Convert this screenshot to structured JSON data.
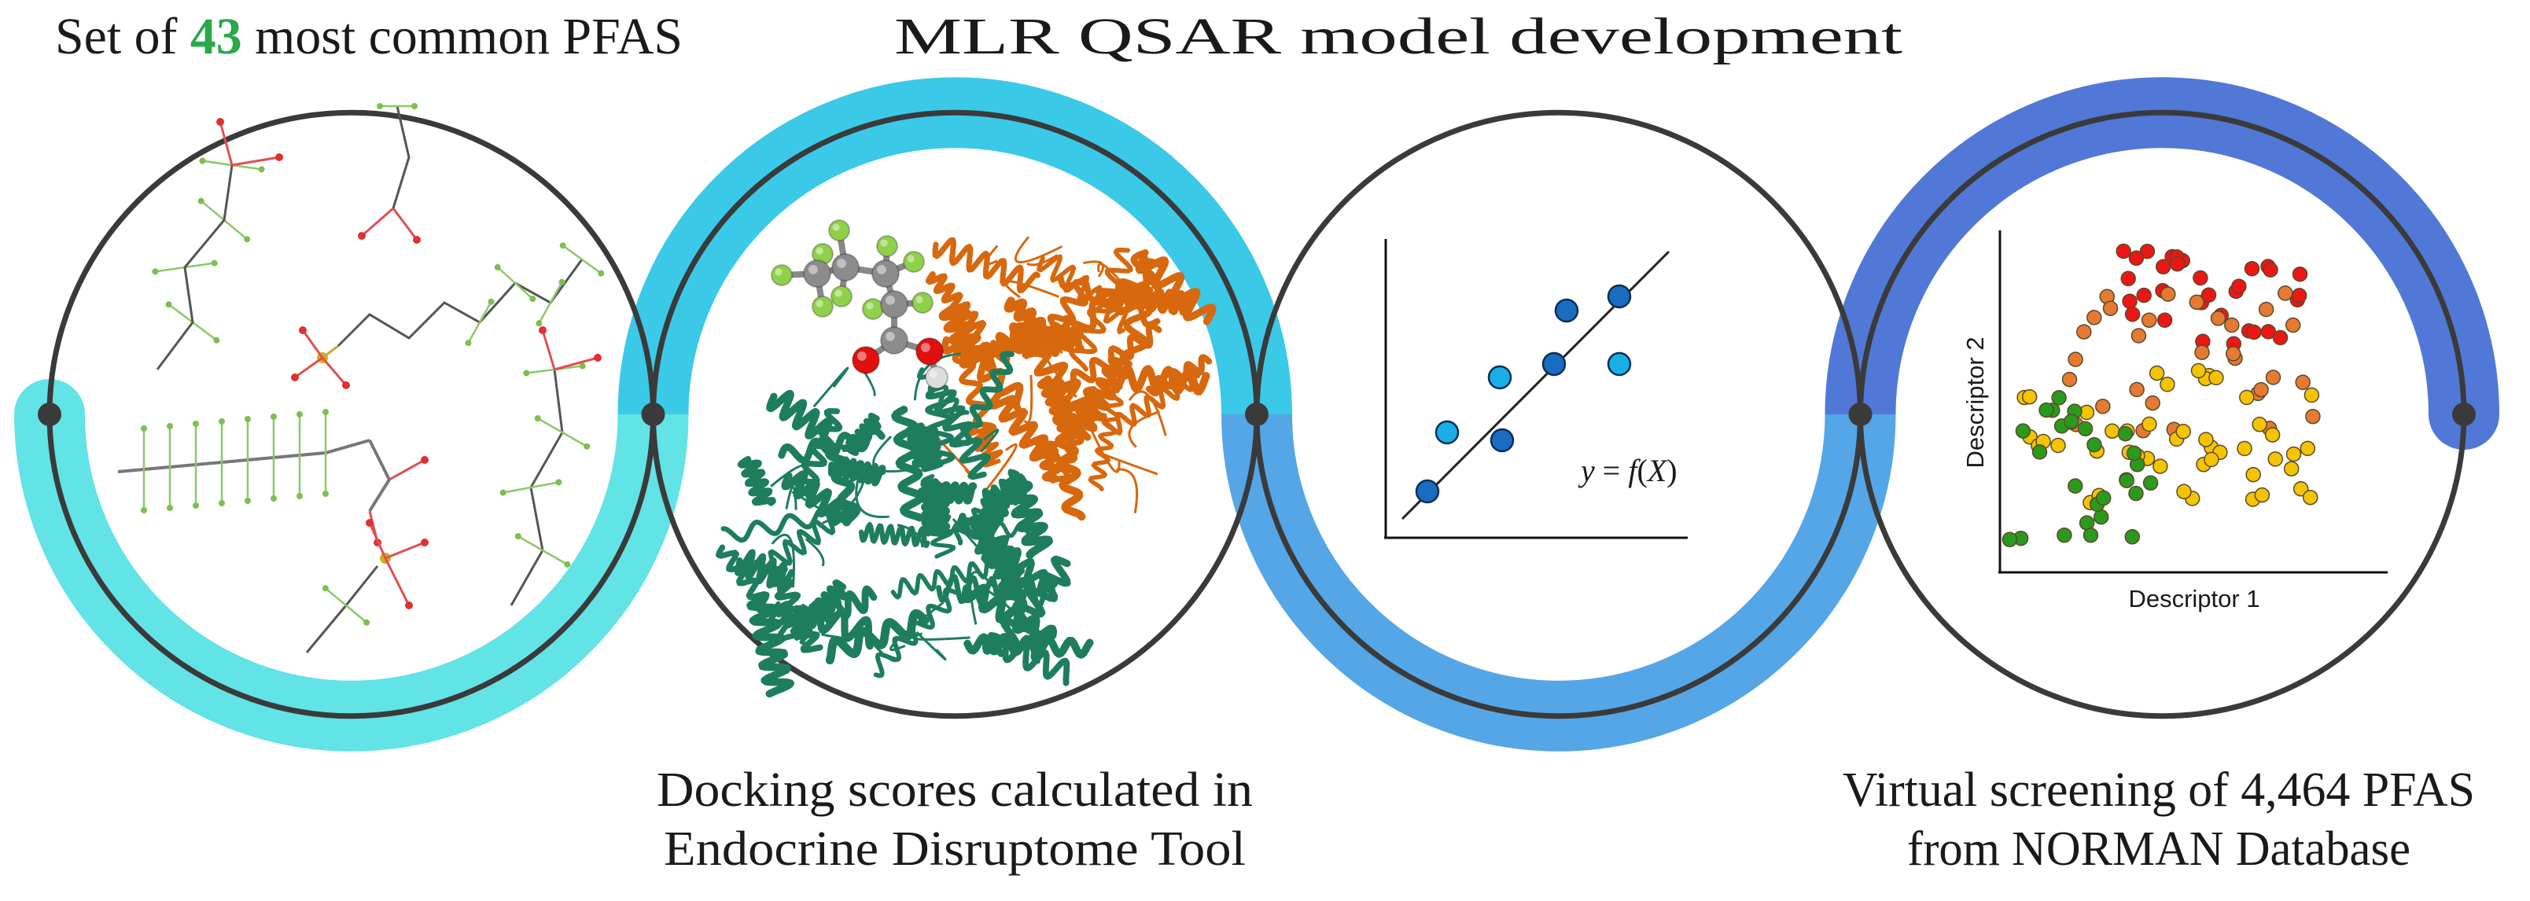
{
  "workflow": {
    "step1": {
      "title_prefix": "Set of ",
      "title_highlight": "43",
      "title_suffix": " most common PFAS"
    },
    "step2": {
      "caption_line1": "Docking scores calculated in",
      "caption_line2": "Endocrine Disruptome Tool"
    },
    "step3": {
      "title": "MLR QSAR model development",
      "equation_y": "y",
      "equation_eq": " = ",
      "equation_f": "f",
      "equation_open": "(",
      "equation_x": "X",
      "equation_close": ")"
    },
    "step4": {
      "caption_line1": "Virtual screening of 4,464 PFAS",
      "caption_line2": "from NORMAN Database",
      "x_axis_label": "Descriptor 1",
      "y_axis_label": "Descriptor 2"
    }
  },
  "colors": {
    "highlight_green": "#2aa84a",
    "band_step1": "#62e3e6",
    "band_step2": "#3bc9e8",
    "band_step3": "#55a6e6",
    "band_step4": "#5178d6",
    "ring": "#3a3a3a",
    "protein_chain_a": "#1e7d5c",
    "protein_chain_b": "#d8680e",
    "qsar_point_dark": "#1a6cc0",
    "qsar_point_light": "#19aee8",
    "cluster_red": "#ee1515",
    "cluster_orange": "#e67a32",
    "cluster_yellow": "#f4c400",
    "cluster_green": "#2a9a1c"
  }
}
